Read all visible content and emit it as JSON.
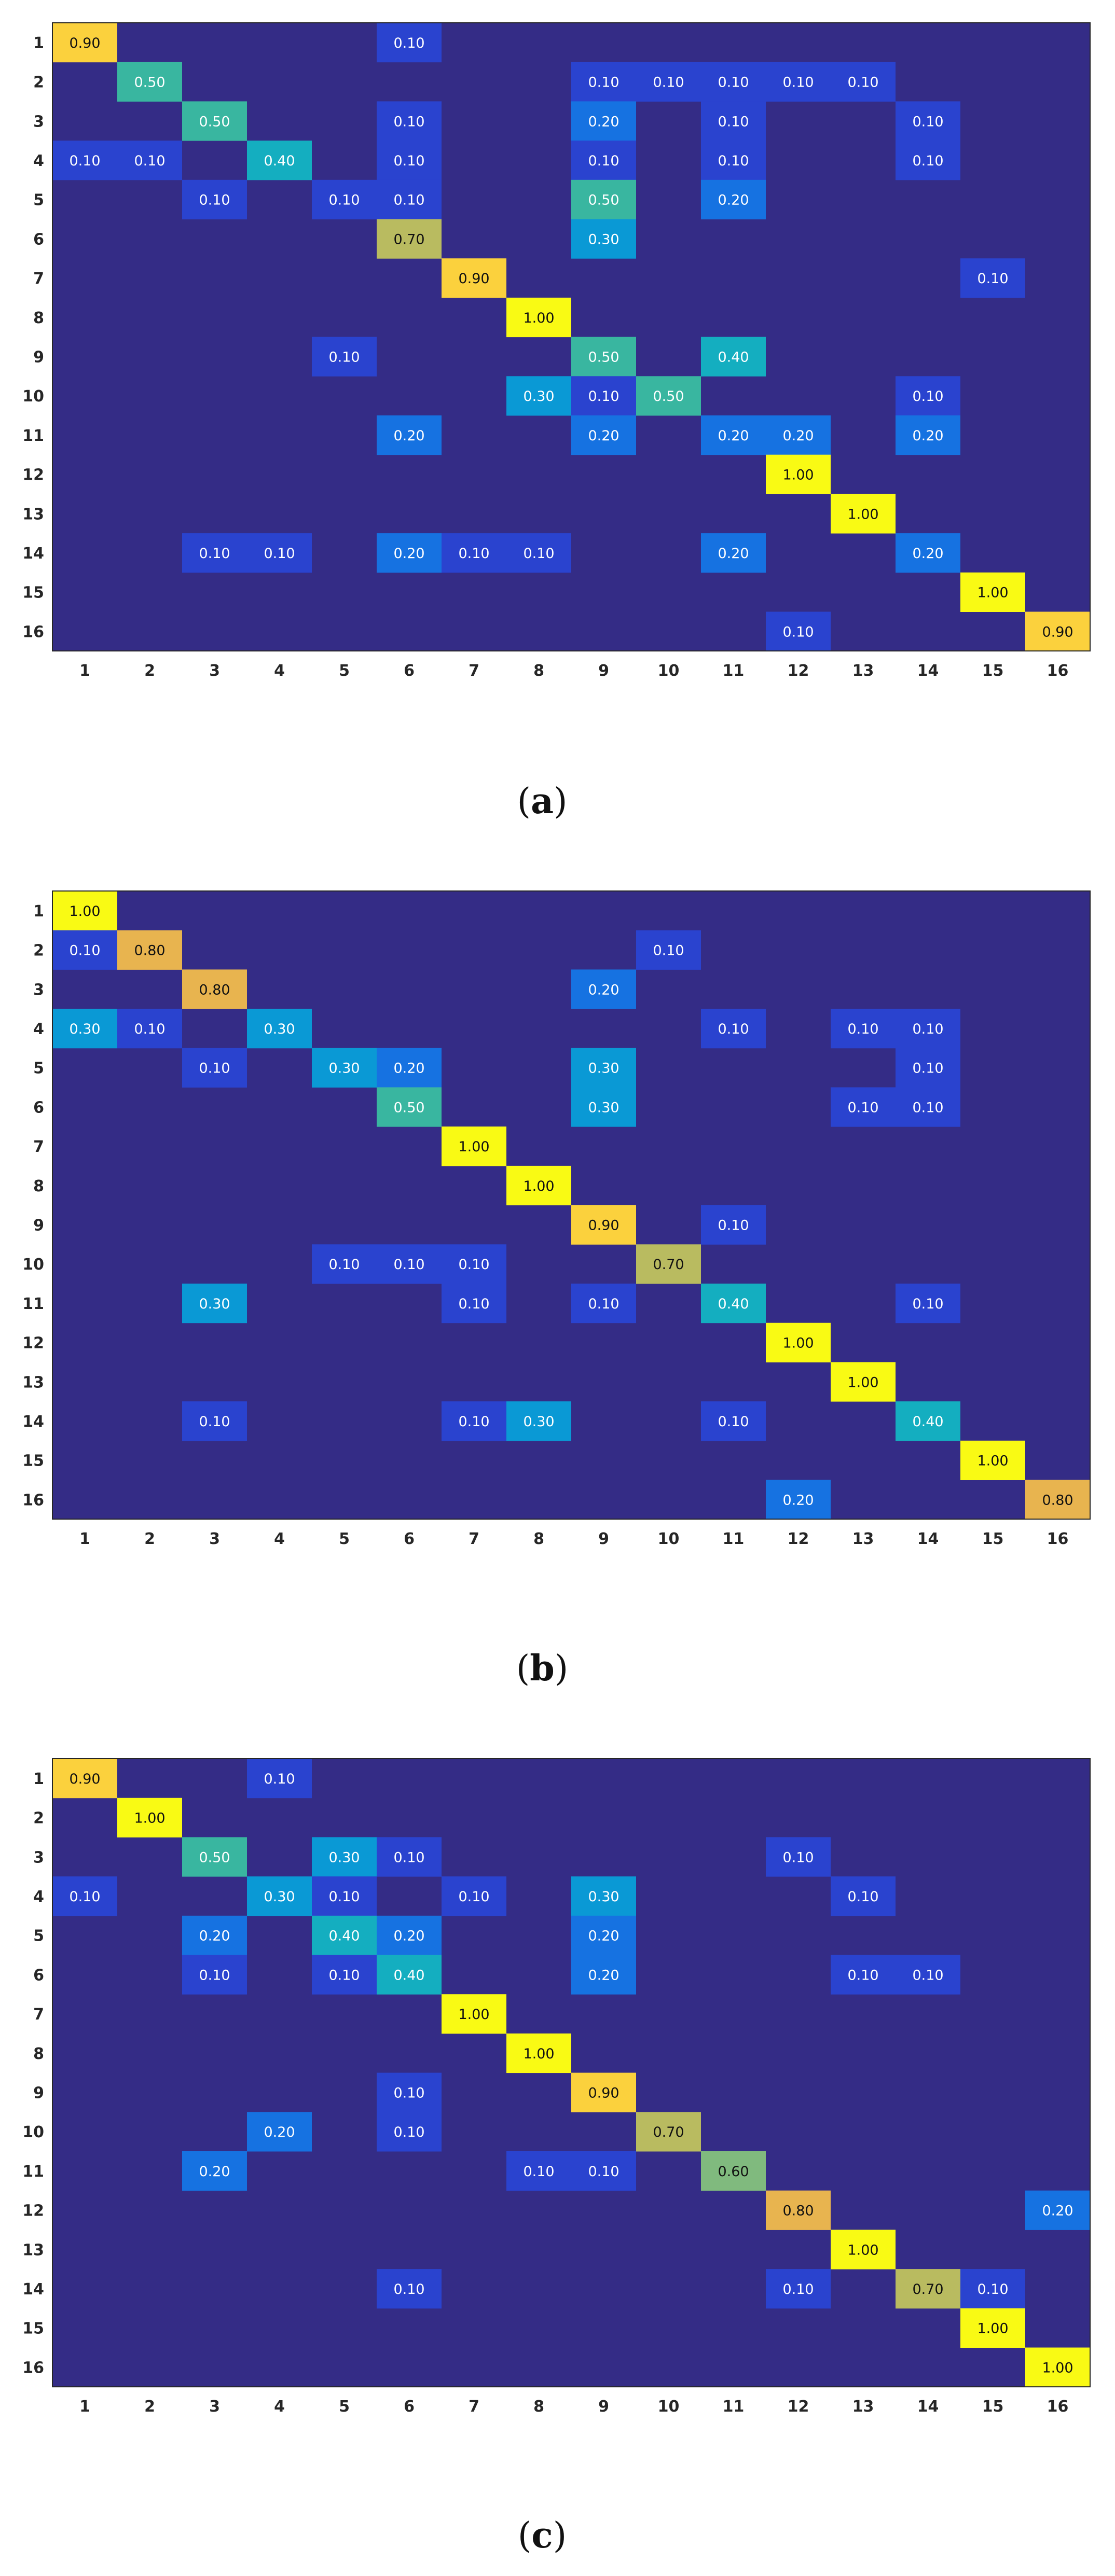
{
  "figure": {
    "captions": [
      "(a)",
      "(b)",
      "(c)"
    ]
  },
  "colors": {
    "background": "#342c86",
    "colormap": [
      "#342c86",
      "#2a43cf",
      "#1672e1",
      "#0a99d5",
      "#14aec0",
      "#39b6a0",
      "#80ba7e",
      "#b9bb60",
      "#e8b44f",
      "#fbd13d",
      "#f9fa14"
    ],
    "text_dark": "#111111",
    "text_light": "#ffffff"
  },
  "chart_data": [
    {
      "type": "heatmap",
      "title": "",
      "xlabel": "",
      "ylabel": "",
      "x_ticks": [
        "1",
        "2",
        "3",
        "4",
        "5",
        "6",
        "7",
        "8",
        "9",
        "10",
        "11",
        "12",
        "13",
        "14",
        "15",
        "16"
      ],
      "y_ticks": [
        "1",
        "2",
        "3",
        "4",
        "5",
        "6",
        "7",
        "8",
        "9",
        "10",
        "11",
        "12",
        "13",
        "14",
        "15",
        "16"
      ],
      "value_range": [
        0,
        1
      ],
      "values": [
        [
          0.9,
          0,
          0,
          0,
          0,
          0.1,
          0,
          0,
          0,
          0,
          0,
          0,
          0,
          0,
          0,
          0
        ],
        [
          0,
          0.5,
          0,
          0,
          0,
          0,
          0,
          0,
          0.1,
          0.1,
          0.1,
          0.1,
          0.1,
          0,
          0,
          0
        ],
        [
          0,
          0,
          0.5,
          0,
          0,
          0.1,
          0,
          0,
          0.2,
          0,
          0.1,
          0,
          0,
          0.1,
          0,
          0
        ],
        [
          0.1,
          0.1,
          0,
          0.4,
          0,
          0.1,
          0,
          0,
          0.1,
          0,
          0.1,
          0,
          0,
          0.1,
          0,
          0
        ],
        [
          0,
          0,
          0.1,
          0,
          0.1,
          0.1,
          0,
          0,
          0.5,
          0,
          0.2,
          0,
          0,
          0,
          0,
          0
        ],
        [
          0,
          0,
          0,
          0,
          0,
          0.7,
          0,
          0,
          0.3,
          0,
          0,
          0,
          0,
          0,
          0,
          0
        ],
        [
          0,
          0,
          0,
          0,
          0,
          0,
          0.9,
          0,
          0,
          0,
          0,
          0,
          0,
          0,
          0.1,
          0
        ],
        [
          0,
          0,
          0,
          0,
          0,
          0,
          0,
          1.0,
          0,
          0,
          0,
          0,
          0,
          0,
          0,
          0
        ],
        [
          0,
          0,
          0,
          0,
          0.1,
          0,
          0,
          0,
          0.5,
          0,
          0.4,
          0,
          0,
          0,
          0,
          0
        ],
        [
          0,
          0,
          0,
          0,
          0,
          0,
          0,
          0.3,
          0.1,
          0.5,
          0,
          0,
          0,
          0.1,
          0,
          0
        ],
        [
          0,
          0,
          0,
          0,
          0,
          0.2,
          0,
          0,
          0.2,
          0,
          0.2,
          0.2,
          0,
          0.2,
          0,
          0
        ],
        [
          0,
          0,
          0,
          0,
          0,
          0,
          0,
          0,
          0,
          0,
          0,
          1.0,
          0,
          0,
          0,
          0
        ],
        [
          0,
          0,
          0,
          0,
          0,
          0,
          0,
          0,
          0,
          0,
          0,
          0,
          1.0,
          0,
          0,
          0
        ],
        [
          0,
          0,
          0.1,
          0.1,
          0,
          0.2,
          0.1,
          0.1,
          0,
          0,
          0.2,
          0,
          0,
          0.2,
          0,
          0
        ],
        [
          0,
          0,
          0,
          0,
          0,
          0,
          0,
          0,
          0,
          0,
          0,
          0,
          0,
          0,
          1.0,
          0
        ],
        [
          0,
          0,
          0,
          0,
          0,
          0,
          0,
          0,
          0,
          0,
          0,
          0.1,
          0,
          0,
          0,
          0.9
        ]
      ]
    },
    {
      "type": "heatmap",
      "title": "",
      "xlabel": "",
      "ylabel": "",
      "x_ticks": [
        "1",
        "2",
        "3",
        "4",
        "5",
        "6",
        "7",
        "8",
        "9",
        "10",
        "11",
        "12",
        "13",
        "14",
        "15",
        "16"
      ],
      "y_ticks": [
        "1",
        "2",
        "3",
        "4",
        "5",
        "6",
        "7",
        "8",
        "9",
        "10",
        "11",
        "12",
        "13",
        "14",
        "15",
        "16"
      ],
      "value_range": [
        0,
        1
      ],
      "values": [
        [
          1.0,
          0,
          0,
          0,
          0,
          0,
          0,
          0,
          0,
          0,
          0,
          0,
          0,
          0,
          0,
          0
        ],
        [
          0.1,
          0.8,
          0,
          0,
          0,
          0,
          0,
          0,
          0,
          0.1,
          0,
          0,
          0,
          0,
          0,
          0
        ],
        [
          0,
          0,
          0.8,
          0,
          0,
          0,
          0,
          0,
          0.2,
          0,
          0,
          0,
          0,
          0,
          0,
          0
        ],
        [
          0.3,
          0.1,
          0,
          0.3,
          0,
          0,
          0,
          0,
          0,
          0,
          0.1,
          0,
          0.1,
          0.1,
          0,
          0
        ],
        [
          0,
          0,
          0.1,
          0,
          0.3,
          0.2,
          0,
          0,
          0.3,
          0,
          0,
          0,
          0,
          0.1,
          0,
          0
        ],
        [
          0,
          0,
          0,
          0,
          0,
          0.5,
          0,
          0,
          0.3,
          0,
          0,
          0,
          0.1,
          0.1,
          0,
          0
        ],
        [
          0,
          0,
          0,
          0,
          0,
          0,
          1.0,
          0,
          0,
          0,
          0,
          0,
          0,
          0,
          0,
          0
        ],
        [
          0,
          0,
          0,
          0,
          0,
          0,
          0,
          1.0,
          0,
          0,
          0,
          0,
          0,
          0,
          0,
          0
        ],
        [
          0,
          0,
          0,
          0,
          0,
          0,
          0,
          0,
          0.9,
          0,
          0.1,
          0,
          0,
          0,
          0,
          0
        ],
        [
          0,
          0,
          0,
          0,
          0.1,
          0.1,
          0.1,
          0,
          0,
          0.7,
          0,
          0,
          0,
          0,
          0,
          0
        ],
        [
          0,
          0,
          0.3,
          0,
          0,
          0,
          0.1,
          0,
          0.1,
          0,
          0.4,
          0,
          0,
          0.1,
          0,
          0
        ],
        [
          0,
          0,
          0,
          0,
          0,
          0,
          0,
          0,
          0,
          0,
          0,
          1.0,
          0,
          0,
          0,
          0
        ],
        [
          0,
          0,
          0,
          0,
          0,
          0,
          0,
          0,
          0,
          0,
          0,
          0,
          1.0,
          0,
          0,
          0
        ],
        [
          0,
          0,
          0.1,
          0,
          0,
          0,
          0.1,
          0.3,
          0,
          0,
          0.1,
          0,
          0,
          0.4,
          0,
          0
        ],
        [
          0,
          0,
          0,
          0,
          0,
          0,
          0,
          0,
          0,
          0,
          0,
          0,
          0,
          0,
          1.0,
          0
        ],
        [
          0,
          0,
          0,
          0,
          0,
          0,
          0,
          0,
          0,
          0,
          0,
          0.2,
          0,
          0,
          0,
          0.8
        ]
      ]
    },
    {
      "type": "heatmap",
      "title": "",
      "xlabel": "",
      "ylabel": "",
      "x_ticks": [
        "1",
        "2",
        "3",
        "4",
        "5",
        "6",
        "7",
        "8",
        "9",
        "10",
        "11",
        "12",
        "13",
        "14",
        "15",
        "16"
      ],
      "y_ticks": [
        "1",
        "2",
        "3",
        "4",
        "5",
        "6",
        "7",
        "8",
        "9",
        "10",
        "11",
        "12",
        "13",
        "14",
        "15",
        "16"
      ],
      "value_range": [
        0,
        1
      ],
      "values": [
        [
          0.9,
          0,
          0,
          0.1,
          0,
          0,
          0,
          0,
          0,
          0,
          0,
          0,
          0,
          0,
          0,
          0
        ],
        [
          0,
          1.0,
          0,
          0,
          0,
          0,
          0,
          0,
          0,
          0,
          0,
          0,
          0,
          0,
          0,
          0
        ],
        [
          0,
          0,
          0.5,
          0,
          0.3,
          0.1,
          0,
          0,
          0,
          0,
          0,
          0.1,
          0,
          0,
          0,
          0
        ],
        [
          0.1,
          0,
          0,
          0.3,
          0.1,
          0,
          0.1,
          0,
          0.3,
          0,
          0,
          0,
          0.1,
          0,
          0,
          0
        ],
        [
          0,
          0,
          0.2,
          0,
          0.4,
          0.2,
          0,
          0,
          0.2,
          0,
          0,
          0,
          0,
          0,
          0,
          0
        ],
        [
          0,
          0,
          0.1,
          0,
          0.1,
          0.4,
          0,
          0,
          0.2,
          0,
          0,
          0,
          0.1,
          0.1,
          0,
          0
        ],
        [
          0,
          0,
          0,
          0,
          0,
          0,
          1.0,
          0,
          0,
          0,
          0,
          0,
          0,
          0,
          0,
          0
        ],
        [
          0,
          0,
          0,
          0,
          0,
          0,
          0,
          1.0,
          0,
          0,
          0,
          0,
          0,
          0,
          0,
          0
        ],
        [
          0,
          0,
          0,
          0,
          0,
          0.1,
          0,
          0,
          0.9,
          0,
          0,
          0,
          0,
          0,
          0,
          0
        ],
        [
          0,
          0,
          0,
          0.2,
          0,
          0.1,
          0,
          0,
          0,
          0.7,
          0,
          0,
          0,
          0,
          0,
          0
        ],
        [
          0,
          0,
          0.2,
          0,
          0,
          0,
          0,
          0.1,
          0.1,
          0,
          0.6,
          0,
          0,
          0,
          0,
          0
        ],
        [
          0,
          0,
          0,
          0,
          0,
          0,
          0,
          0,
          0,
          0,
          0,
          0.8,
          0,
          0,
          0,
          0.2
        ],
        [
          0,
          0,
          0,
          0,
          0,
          0,
          0,
          0,
          0,
          0,
          0,
          0,
          1.0,
          0,
          0,
          0
        ],
        [
          0,
          0,
          0,
          0,
          0,
          0.1,
          0,
          0,
          0,
          0,
          0,
          0.1,
          0,
          0.7,
          0.1,
          0
        ],
        [
          0,
          0,
          0,
          0,
          0,
          0,
          0,
          0,
          0,
          0,
          0,
          0,
          0,
          0,
          1.0,
          0
        ],
        [
          0,
          0,
          0,
          0,
          0,
          0,
          0,
          0,
          0,
          0,
          0,
          0,
          0,
          0,
          0,
          1.0
        ]
      ]
    }
  ]
}
